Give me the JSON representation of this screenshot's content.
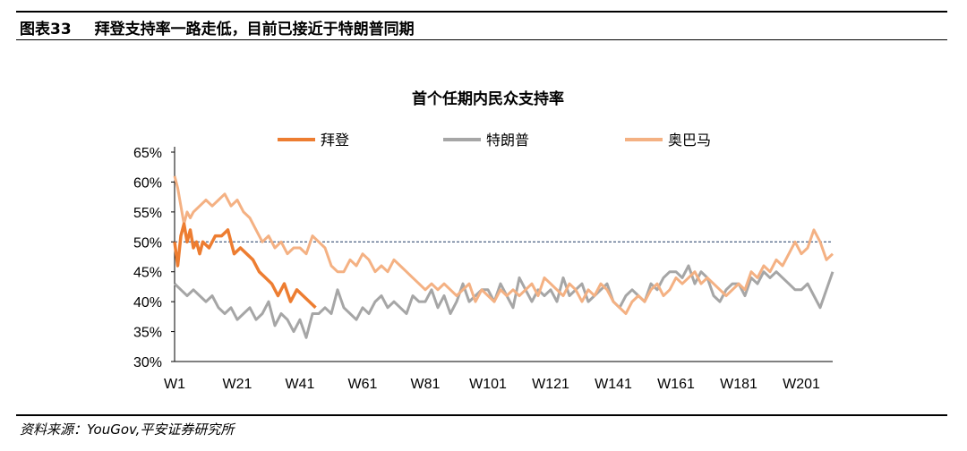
{
  "figure": {
    "number": "图表33",
    "caption": "拜登支持率一路走低，目前已接近于特朗普同期"
  },
  "source": "资料来源：YouGov,平安证券研究所",
  "chart_data": {
    "type": "line",
    "title": "首个任期内民众支持率",
    "ylim": [
      30,
      65
    ],
    "y_ticks": [
      "30%",
      "35%",
      "40%",
      "45%",
      "50%",
      "55%",
      "60%",
      "65%"
    ],
    "x_range": [
      1,
      211
    ],
    "x_ticks": [
      "W1",
      "W21",
      "W41",
      "W61",
      "W81",
      "W101",
      "W121",
      "W141",
      "W161",
      "W181",
      "W201"
    ],
    "x_tick_weeks": [
      1,
      21,
      41,
      61,
      81,
      101,
      121,
      141,
      161,
      181,
      201
    ],
    "reference_line": {
      "y": 50,
      "color": "#1f3864",
      "style": "dashed"
    },
    "legend_position": "top",
    "grid": false,
    "series": [
      {
        "name": "拜登",
        "color": "#ed7d31",
        "x": [
          1,
          2,
          3,
          4,
          5,
          6,
          7,
          8,
          9,
          10,
          12,
          14,
          16,
          18,
          20,
          22,
          24,
          26,
          28,
          30,
          32,
          34,
          36,
          38,
          40,
          42,
          44,
          46
        ],
        "values": [
          50,
          46,
          51,
          53,
          50,
          52,
          49,
          50,
          48,
          50,
          49,
          51,
          51,
          52,
          48,
          49,
          48,
          47,
          45,
          44,
          43,
          41,
          43,
          40,
          42,
          41,
          40,
          39
        ]
      },
      {
        "name": "特朗普",
        "color": "#a6a6a6",
        "x": [
          1,
          3,
          5,
          7,
          9,
          11,
          13,
          15,
          17,
          19,
          21,
          23,
          25,
          27,
          29,
          31,
          33,
          35,
          37,
          39,
          41,
          43,
          45,
          47,
          49,
          51,
          53,
          55,
          57,
          59,
          61,
          63,
          65,
          67,
          69,
          71,
          73,
          75,
          77,
          79,
          81,
          83,
          85,
          87,
          89,
          91,
          93,
          95,
          97,
          99,
          101,
          103,
          105,
          107,
          109,
          111,
          113,
          115,
          117,
          119,
          121,
          123,
          125,
          127,
          129,
          131,
          133,
          135,
          137,
          139,
          141,
          143,
          145,
          147,
          149,
          151,
          153,
          155,
          157,
          159,
          161,
          163,
          165,
          167,
          169,
          171,
          173,
          175,
          177,
          179,
          181,
          183,
          185,
          187,
          189,
          191,
          193,
          195,
          197,
          199,
          201,
          203,
          205,
          207,
          209,
          211
        ],
        "values": [
          43,
          42,
          41,
          42,
          41,
          40,
          41,
          39,
          38,
          39,
          37,
          38,
          39,
          37,
          38,
          40,
          36,
          38,
          37,
          35,
          37,
          34,
          38,
          38,
          39,
          38,
          42,
          39,
          38,
          37,
          39,
          38,
          40,
          41,
          39,
          40,
          39,
          38,
          41,
          40,
          40,
          42,
          39,
          41,
          38,
          40,
          43,
          40,
          41,
          42,
          42,
          40,
          43,
          41,
          39,
          44,
          42,
          40,
          42,
          41,
          42,
          40,
          44,
          41,
          42,
          43,
          40,
          41,
          42,
          43,
          40,
          39,
          41,
          42,
          41,
          40,
          43,
          42,
          44,
          45,
          45,
          44,
          46,
          43,
          45,
          44,
          41,
          40,
          42,
          43,
          43,
          41,
          44,
          43,
          45,
          44,
          45,
          44,
          43,
          42,
          42,
          43,
          41,
          39,
          42,
          45
        ]
      },
      {
        "name": "奥巴马",
        "color": "#f4b183",
        "x": [
          1,
          2,
          3,
          4,
          5,
          6,
          7,
          9,
          11,
          13,
          15,
          17,
          19,
          21,
          23,
          25,
          27,
          29,
          31,
          33,
          35,
          37,
          39,
          41,
          43,
          45,
          47,
          49,
          51,
          53,
          55,
          57,
          59,
          61,
          63,
          65,
          67,
          69,
          71,
          73,
          75,
          77,
          79,
          81,
          83,
          85,
          87,
          89,
          91,
          93,
          95,
          97,
          99,
          101,
          103,
          105,
          107,
          109,
          111,
          113,
          115,
          117,
          119,
          121,
          123,
          125,
          127,
          129,
          131,
          133,
          135,
          137,
          139,
          141,
          143,
          145,
          147,
          149,
          151,
          153,
          155,
          157,
          159,
          161,
          163,
          165,
          167,
          169,
          171,
          173,
          175,
          177,
          179,
          181,
          183,
          185,
          187,
          189,
          191,
          193,
          195,
          197,
          199,
          201,
          203,
          205,
          207,
          209,
          211
        ],
        "values": [
          61,
          59,
          56,
          53,
          55,
          54,
          55,
          56,
          57,
          56,
          57,
          58,
          56,
          57,
          55,
          54,
          52,
          50,
          51,
          49,
          50,
          48,
          49,
          49,
          48,
          51,
          50,
          49,
          46,
          45,
          45,
          47,
          46,
          48,
          47,
          45,
          46,
          45,
          47,
          46,
          45,
          44,
          43,
          42,
          43,
          42,
          43,
          42,
          41,
          42,
          43,
          40,
          42,
          41,
          40,
          42,
          41,
          42,
          41,
          42,
          43,
          41,
          44,
          43,
          42,
          41,
          43,
          42,
          40,
          42,
          41,
          43,
          42,
          40,
          39,
          38,
          40,
          41,
          40,
          42,
          43,
          41,
          42,
          44,
          43,
          44,
          45,
          43,
          44,
          43,
          42,
          41,
          42,
          43,
          42,
          45,
          44,
          46,
          45,
          47,
          46,
          48,
          50,
          48,
          49,
          52,
          50,
          47,
          48
        ]
      }
    ]
  }
}
